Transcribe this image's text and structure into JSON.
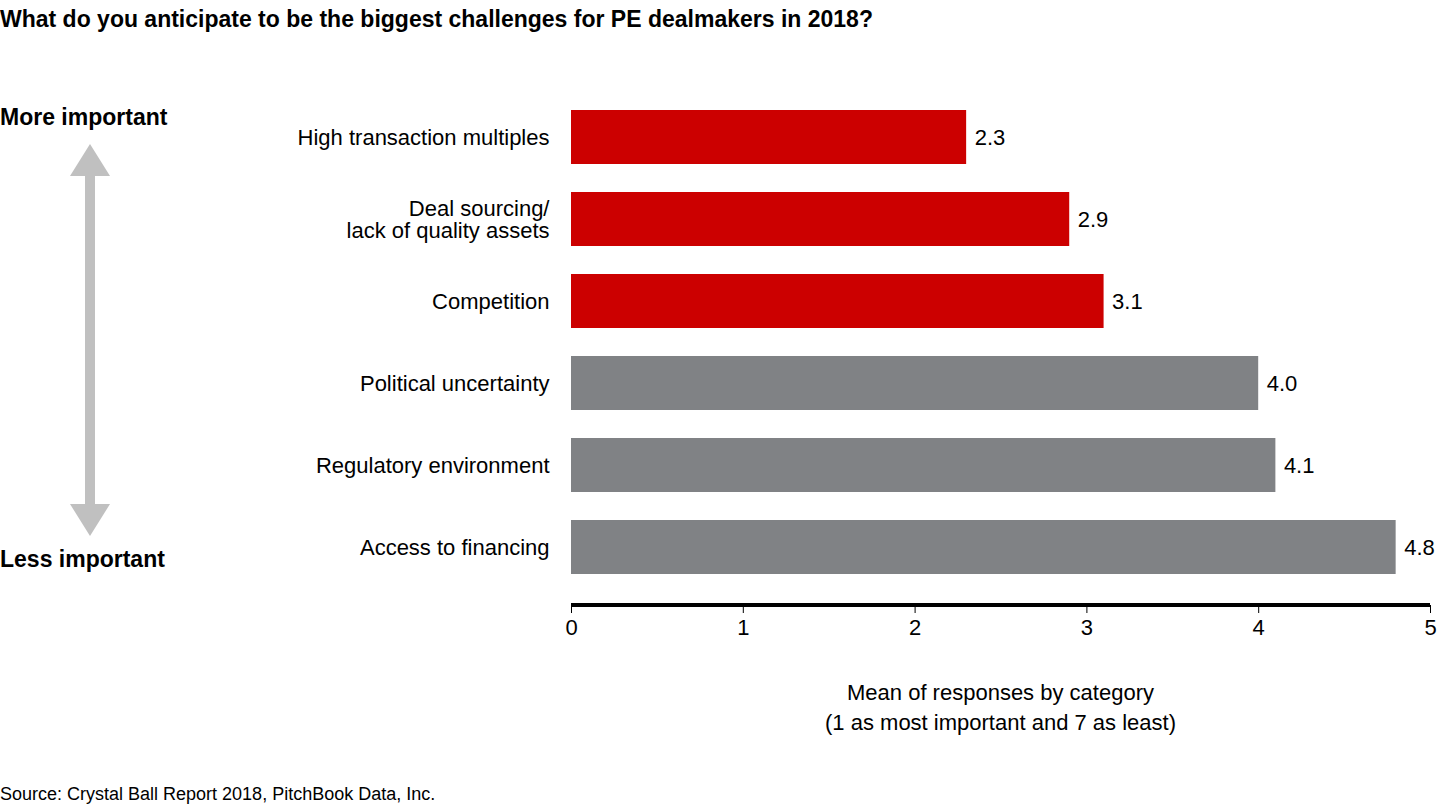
{
  "chart_data": {
    "type": "bar",
    "orientation": "horizontal",
    "title": "What do you anticipate to be the biggest challenges for PE dealmakers in 2018?",
    "categories": [
      "High transaction multiples",
      "Deal sourcing/ lack of quality assets",
      "Competition",
      "Political uncertainty",
      "Regulatory environment",
      "Access to financing"
    ],
    "values": [
      2.3,
      2.9,
      3.1,
      4.0,
      4.1,
      4.8
    ],
    "value_labels": [
      "2.3",
      "2.9",
      "3.1",
      "4.0",
      "4.1",
      "4.8"
    ],
    "colors": [
      "#cc0000",
      "#cc0000",
      "#cc0000",
      "#808285",
      "#808285",
      "#808285"
    ],
    "xlim": [
      0,
      5
    ],
    "xticks": [
      0,
      1,
      2,
      3,
      4,
      5
    ],
    "x_label": "Mean of responses by category\n(1 as most important and 7 as least)",
    "grid": false,
    "data_labels": true,
    "annotations": [
      "More important",
      "Less important"
    ],
    "source": "Source: Crystal Ball Report 2018, PitchBook Data, Inc."
  }
}
